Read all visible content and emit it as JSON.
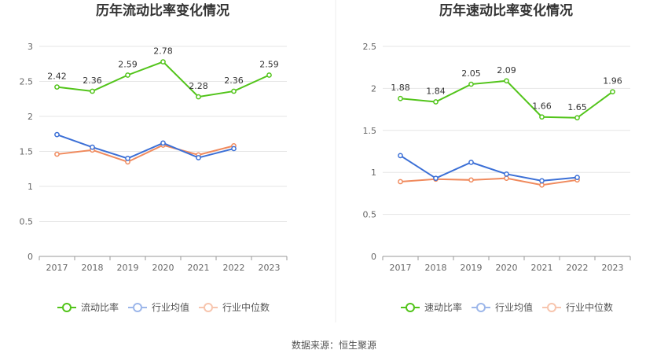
{
  "chart_data": [
    {
      "type": "line",
      "title": "历年流动比率变化情况",
      "xlabel": "",
      "ylabel": "",
      "categories": [
        "2017",
        "2018",
        "2019",
        "2020",
        "2021",
        "2022",
        "2023"
      ],
      "ylim": [
        0,
        3
      ],
      "yticks": [
        0,
        0.5,
        1,
        1.5,
        2,
        2.5,
        3
      ],
      "ytick_labels": [
        "0",
        "0.5",
        "1",
        "1.5",
        "2",
        "2.5",
        "3"
      ],
      "grid": true,
      "legend_position": "bottom",
      "series": [
        {
          "name": "流动比率",
          "color": "#52c41a",
          "values": [
            2.42,
            2.36,
            2.59,
            2.78,
            2.28,
            2.36,
            2.59
          ],
          "labels": [
            "2.42",
            "2.36",
            "2.59",
            "2.78",
            "2.28",
            "2.36",
            "2.59"
          ]
        },
        {
          "name": "行业均值",
          "color": "#3b6fd6",
          "values": [
            1.74,
            1.56,
            1.4,
            1.62,
            1.41,
            1.54,
            null
          ]
        },
        {
          "name": "行业中位数",
          "color": "#f08a5d",
          "values": [
            1.46,
            1.52,
            1.35,
            1.59,
            1.45,
            1.58,
            null
          ]
        }
      ]
    },
    {
      "type": "line",
      "title": "历年速动比率变化情况",
      "xlabel": "",
      "ylabel": "",
      "categories": [
        "2017",
        "2018",
        "2019",
        "2020",
        "2021",
        "2022",
        "2023"
      ],
      "ylim": [
        0,
        2.5
      ],
      "yticks": [
        0,
        0.5,
        1,
        1.5,
        2,
        2.5
      ],
      "ytick_labels": [
        "0",
        "0.5",
        "1",
        "1.5",
        "2",
        "2.5"
      ],
      "grid": true,
      "legend_position": "bottom",
      "series": [
        {
          "name": "速动比率",
          "color": "#52c41a",
          "values": [
            1.88,
            1.84,
            2.05,
            2.09,
            1.66,
            1.65,
            1.96
          ],
          "labels": [
            "1.88",
            "1.84",
            "2.05",
            "2.09",
            "1.66",
            "1.65",
            "1.96"
          ]
        },
        {
          "name": "行业均值",
          "color": "#3b6fd6",
          "values": [
            1.2,
            0.93,
            1.12,
            0.98,
            0.9,
            0.94,
            null
          ]
        },
        {
          "name": "行业中位数",
          "color": "#f08a5d",
          "values": [
            0.89,
            0.92,
            0.91,
            0.93,
            0.85,
            0.91,
            null
          ]
        }
      ]
    }
  ],
  "legend_muted": [
    "#9db7ea",
    "#f7c5ae"
  ],
  "footer": {
    "source": "数据来源：恒生聚源"
  }
}
